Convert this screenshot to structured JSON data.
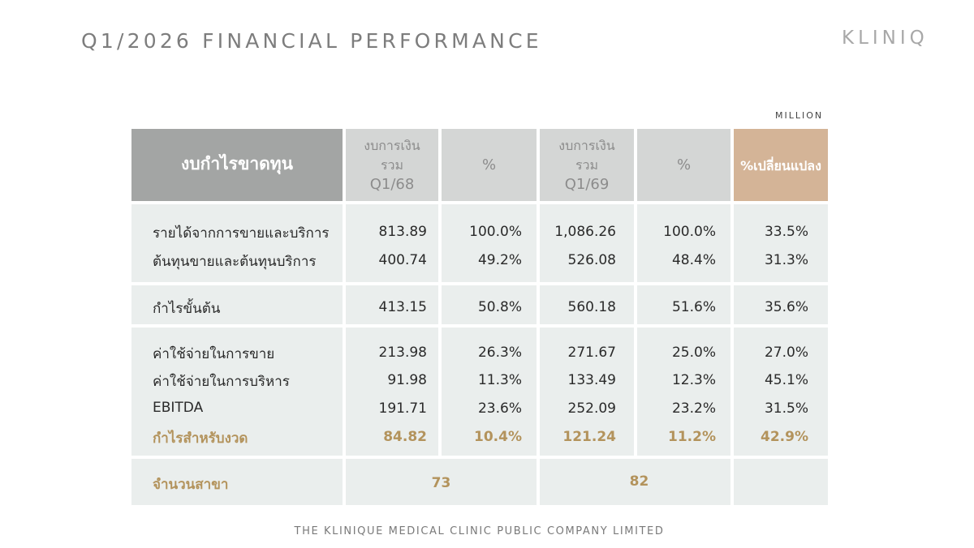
{
  "header": {
    "title": "Q1/2026 FINANCIAL PERFORMANCE",
    "logo": "KLINIQ",
    "unit": "MILLION"
  },
  "table": {
    "title": "งบกำไรขาดทุน",
    "col1": [
      "งบการเงิน",
      "รวม",
      "Q1/68"
    ],
    "col2": "%",
    "col3": [
      "งบการเงิน",
      "รวม",
      "Q1/69"
    ],
    "col4": "%",
    "col5": "%เปลี่ยนแปลง",
    "rows": [
      {
        "label": "รายได้จากการขายและบริการ",
        "v1": "813.89",
        "p1": "100.0%",
        "v2": "1,086.26",
        "p2": "100.0%",
        "chg": "33.5%"
      },
      {
        "label": "ต้นทุนขายและต้นทุนบริการ",
        "v1": "400.74",
        "p1": "49.2%",
        "v2": "526.08",
        "p2": "48.4%",
        "chg": "31.3%"
      },
      {
        "label": "กำไรขั้นต้น",
        "v1": "413.15",
        "p1": "50.8%",
        "v2": "560.18",
        "p2": "51.6%",
        "chg": "35.6%"
      },
      {
        "label": "ค่าใช้จ่ายในการขาย",
        "v1": "213.98",
        "p1": "26.3%",
        "v2": "271.67",
        "p2": "25.0%",
        "chg": "27.0%"
      },
      {
        "label": "ค่าใช้จ่ายในการบริหาร",
        "v1": "91.98",
        "p1": "11.3%",
        "v2": "133.49",
        "p2": "12.3%",
        "chg": "45.1%"
      },
      {
        "label": "EBITDA",
        "v1": "191.71",
        "p1": "23.6%",
        "v2": "252.09",
        "p2": "23.2%",
        "chg": "31.5%"
      },
      {
        "label": "กำไรสำหรับงวด",
        "v1": "84.82",
        "p1": "10.4%",
        "v2": "121.24",
        "p2": "11.2%",
        "chg": "42.9%"
      }
    ],
    "branches": {
      "label": "จำนวนสาขา",
      "q1_68": "73",
      "q1_69": "82"
    }
  },
  "footer": "THE KLINIQUE MEDICAL CLINIC PUBLIC COMPANY LIMITED",
  "colors": {
    "gold_text": "#b3935c",
    "header_dark": "#a3a5a4",
    "header_light": "#d4d6d5",
    "header_gold": "#d4b497",
    "body_bg": "#eaeeed"
  }
}
